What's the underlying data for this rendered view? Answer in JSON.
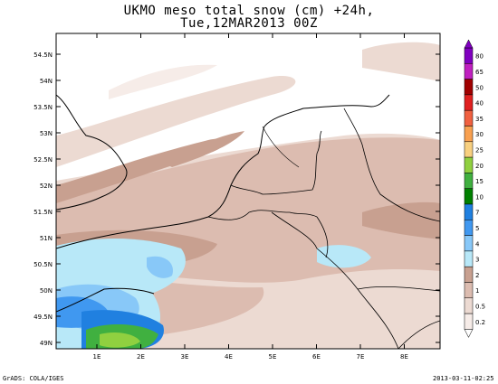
{
  "title": {
    "line1": "UKMO meso total snow (cm) +24h,",
    "line2": "Tue,12MAR2013 00Z"
  },
  "footer": {
    "left": "GrADS: COLA/IGES",
    "right": "2013-03-11-02:25"
  },
  "map": {
    "lat_labels": [
      "54.5N",
      "54N",
      "53.5N",
      "53N",
      "52.5N",
      "52N",
      "51.5N",
      "51N",
      "50.5N",
      "50N",
      "49.5N",
      "49N"
    ],
    "lon_labels": [
      "1E",
      "2E",
      "3E",
      "4E",
      "5E",
      "6E",
      "7E",
      "8E"
    ]
  },
  "legend": {
    "levels": [
      "80",
      "65",
      "50",
      "40",
      "35",
      "30",
      "25",
      "20",
      "15",
      "10",
      "7",
      "5",
      "4",
      "3",
      "2",
      "1",
      "0.5",
      "0.2"
    ],
    "colors": [
      "#8000c0",
      "#c020c0",
      "#a00000",
      "#e02020",
      "#f06040",
      "#f8a050",
      "#f8d080",
      "#90d040",
      "#40b040",
      "#008000",
      "#2080e0",
      "#4098f0",
      "#88c8f8",
      "#b8e8f8",
      "#c8a090",
      "#dcbcb0",
      "#ecdad2",
      "#f6ece8"
    ]
  }
}
